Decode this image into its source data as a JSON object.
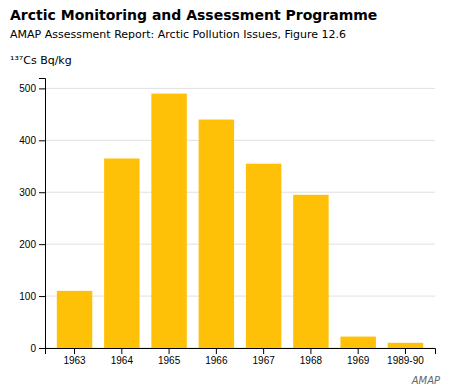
{
  "chart_data": {
    "type": "bar",
    "title": "Arctic Monitoring and Assessment Programme",
    "subtitle": "AMAP Assessment Report: Arctic Pollution Issues, Figure 12.6",
    "y_label": "¹³⁷Cs Bq/kg",
    "annotations": [
      "AMAP"
    ],
    "categories": [
      "1963",
      "1964",
      "1965",
      "1966",
      "1967",
      "1968",
      "1969",
      "1989-90"
    ],
    "values": [
      110,
      365,
      490,
      440,
      355,
      295,
      22,
      10
    ],
    "color": "#FFC107",
    "ylim": [
      0,
      520
    ],
    "yticks": [
      0,
      100,
      200,
      300,
      400,
      500
    ],
    "grid": true
  }
}
